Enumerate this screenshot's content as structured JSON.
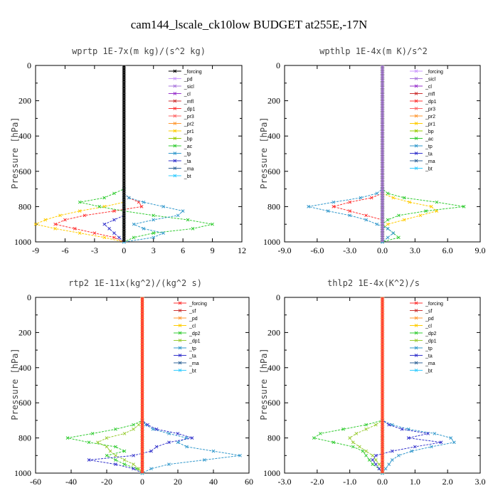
{
  "figure_title": "cam144_lscale_ck10low  BUDGET at255E,-17N",
  "chart_data": [
    {
      "type": "line",
      "title": "wprtp   1E-7x(m kg)/(s^2 kg)",
      "ylabel": "Pressure [hPa]",
      "xlim": [
        -9,
        12
      ],
      "xticks": [
        "-9",
        "-6",
        "-3",
        "0",
        "3",
        "6",
        "9",
        "12"
      ],
      "xtick_values": [
        -9,
        -6,
        -3,
        0,
        3,
        6,
        9,
        12
      ],
      "ylim": [
        1000,
        0
      ],
      "yticks": [
        "0",
        "200",
        "400",
        "600",
        "800",
        "1000"
      ],
      "legend_position": "top-right",
      "p": [
        700,
        725,
        750,
        775,
        800,
        825,
        850,
        875,
        900,
        925,
        950,
        975,
        1000
      ],
      "series": [
        {
          "name": "_forcing",
          "color": "#000000",
          "values": [
            0,
            0,
            0,
            0,
            0,
            0,
            0,
            0,
            0,
            0,
            0,
            0,
            0
          ]
        },
        {
          "name": "_pd",
          "color": "#cc99ff",
          "values": [
            0,
            0,
            0,
            0,
            0,
            0,
            0,
            0,
            0,
            0,
            0,
            0,
            0
          ]
        },
        {
          "name": "_sicl",
          "color": "#aa77dd",
          "values": [
            0,
            0,
            0,
            0,
            0,
            0,
            0,
            0,
            0,
            0,
            0,
            0,
            0
          ]
        },
        {
          "name": "_cl",
          "color": "#9933cc",
          "values": [
            0,
            0,
            0,
            0,
            0,
            0,
            0,
            0,
            0,
            0,
            0,
            0,
            0
          ]
        },
        {
          "name": "_mfl",
          "color": "#cc3333",
          "values": [
            0,
            0,
            0,
            0,
            0,
            0,
            0,
            0,
            0,
            0,
            0,
            0,
            0
          ]
        },
        {
          "name": "_dp1",
          "color": "#ff3333",
          "values": [
            0,
            0,
            0.5,
            1.5,
            1.8,
            -1,
            -4,
            -6,
            -7,
            -5,
            -3,
            -1,
            0
          ]
        },
        {
          "name": "_pr3",
          "color": "#ff6666",
          "values": [
            0,
            0,
            0,
            0,
            0,
            0,
            0,
            0,
            0,
            0,
            0,
            0,
            0
          ]
        },
        {
          "name": "_pr2",
          "color": "#ff9933",
          "values": [
            0,
            0,
            0,
            0,
            0,
            0,
            0,
            0,
            0,
            0,
            0,
            0,
            0
          ]
        },
        {
          "name": "_pr1",
          "color": "#ffcc00",
          "values": [
            0,
            0,
            0,
            0,
            -2,
            -4.5,
            -6.5,
            -8,
            -9,
            -7,
            -4.5,
            -2,
            0
          ]
        },
        {
          "name": "_bp",
          "color": "#99cc00",
          "values": [
            0,
            0,
            0,
            0,
            0,
            0,
            0,
            0,
            0,
            0,
            0,
            0,
            0
          ]
        },
        {
          "name": "_ac",
          "color": "#33cc33",
          "values": [
            0,
            -1,
            -2,
            -4.5,
            -2.5,
            0,
            3,
            6.5,
            9,
            7,
            3,
            1,
            0
          ]
        },
        {
          "name": "_tp",
          "color": "#3399cc",
          "values": [
            0,
            0,
            0.5,
            2,
            4,
            6,
            5.5,
            3,
            1,
            2,
            4,
            3,
            0
          ]
        },
        {
          "name": "_ta",
          "color": "#3333cc",
          "values": [
            0,
            0,
            0,
            0,
            0,
            0,
            0,
            -1,
            -2,
            -1.5,
            -1,
            -0.5,
            0
          ]
        },
        {
          "name": "_ma",
          "color": "#336699",
          "values": [
            0,
            0,
            0,
            0,
            0,
            0,
            0,
            0,
            0,
            0,
            0,
            0,
            0
          ]
        },
        {
          "name": "_bt",
          "color": "#33ccff",
          "values": [
            0,
            0,
            0,
            0,
            0,
            0,
            0,
            0,
            0,
            0,
            0,
            0,
            0
          ]
        }
      ]
    },
    {
      "type": "line",
      "title": "wpthlp   1E-4x(m K)/s^2",
      "ylabel": "Pressure [hPa]",
      "xlim": [
        -9,
        9
      ],
      "xticks": [
        "-9.0",
        "-6.0",
        "-3.0",
        "0.0",
        "3.0",
        "6.0",
        "9.0"
      ],
      "xtick_values": [
        -9,
        -6,
        -3,
        0,
        3,
        6,
        9
      ],
      "ylim": [
        1000,
        0
      ],
      "yticks": [
        "0",
        "200",
        "400",
        "600",
        "800",
        "1000"
      ],
      "legend_position": "top-right",
      "p": [
        700,
        725,
        750,
        775,
        800,
        825,
        850,
        875,
        900,
        925,
        950,
        975,
        1000
      ],
      "series": [
        {
          "name": "_forcing",
          "color": "#cc99ff",
          "values": [
            0,
            0,
            0,
            0,
            0,
            0,
            0,
            0,
            0,
            0,
            0,
            0,
            0
          ]
        },
        {
          "name": "_sicl",
          "color": "#aa77dd",
          "values": [
            0,
            0,
            0,
            0,
            0,
            0,
            0,
            0,
            0,
            0,
            0,
            0,
            0
          ]
        },
        {
          "name": "_cl",
          "color": "#9933cc",
          "values": [
            0,
            0,
            0,
            0,
            0,
            0,
            0,
            0,
            0,
            0,
            0,
            0,
            0
          ]
        },
        {
          "name": "_mfl",
          "color": "#cc3333",
          "values": [
            0,
            0,
            0,
            0,
            0,
            0,
            0,
            0,
            0,
            0,
            0,
            0,
            0
          ]
        },
        {
          "name": "_dp1",
          "color": "#ff3333",
          "values": [
            0,
            0,
            -1,
            -3,
            -4.5,
            -3,
            -1.5,
            0,
            0,
            0,
            0,
            0,
            0
          ]
        },
        {
          "name": "_pr3",
          "color": "#ff6666",
          "values": [
            0,
            0,
            0,
            0,
            0,
            0,
            0,
            0,
            0,
            0,
            0,
            0,
            0
          ]
        },
        {
          "name": "_pr2",
          "color": "#ff9933",
          "values": [
            0,
            0,
            0,
            0,
            0,
            0,
            0,
            0,
            0,
            0,
            0,
            0,
            0
          ]
        },
        {
          "name": "_pr1",
          "color": "#ffcc00",
          "values": [
            0,
            0,
            1,
            2.5,
            4.5,
            5,
            3.5,
            2,
            0.5,
            0,
            0,
            0,
            0
          ]
        },
        {
          "name": "_bp",
          "color": "#99cc00",
          "values": [
            0,
            0,
            0,
            0,
            0,
            0,
            0,
            0,
            0,
            0,
            0,
            0,
            0
          ]
        },
        {
          "name": "_ac",
          "color": "#33cc33",
          "values": [
            0,
            0.5,
            2,
            5,
            7.5,
            4,
            1.5,
            0.5,
            0,
            0.5,
            1,
            1.5,
            0
          ]
        },
        {
          "name": "_tp",
          "color": "#3399cc",
          "values": [
            0,
            -0.5,
            -2,
            -4.5,
            -6.8,
            -5,
            -3,
            -1.5,
            -0.5,
            0.5,
            1,
            0.5,
            0
          ]
        },
        {
          "name": "_ta",
          "color": "#3333cc",
          "values": [
            0,
            0,
            0,
            0,
            0,
            0,
            0,
            0,
            0,
            0,
            0,
            0,
            0
          ]
        },
        {
          "name": "_ma",
          "color": "#336699",
          "values": [
            0,
            0,
            0,
            0,
            0,
            0,
            0,
            0,
            0,
            0,
            0,
            0,
            0
          ]
        },
        {
          "name": "_bt",
          "color": "#33ccff",
          "values": [
            0,
            0,
            0,
            0,
            0,
            0,
            0,
            0,
            0,
            0,
            0,
            0,
            0
          ]
        }
      ]
    },
    {
      "type": "line",
      "title": "rtp2   1E-11x(kg^2)/(kg^2 s)",
      "ylabel": "Pressure [hPa]",
      "xlim": [
        -60,
        60
      ],
      "xticks": [
        "-60",
        "-40",
        "-20",
        "0",
        "20",
        "40",
        "60"
      ],
      "xtick_values": [
        -60,
        -40,
        -20,
        0,
        20,
        40,
        60
      ],
      "ylim": [
        1000,
        0
      ],
      "yticks": [
        "0",
        "200",
        "400",
        "600",
        "800",
        "1000"
      ],
      "legend_position": "top-right",
      "p": [
        700,
        725,
        750,
        775,
        800,
        825,
        850,
        875,
        900,
        925,
        950,
        975,
        1000
      ],
      "series": [
        {
          "name": "_forcing",
          "color": "#ff3333",
          "values": [
            0,
            0,
            0,
            0,
            0,
            0,
            0,
            0,
            0,
            0,
            0,
            0,
            0
          ]
        },
        {
          "name": "_sf",
          "color": "#cc3333",
          "values": [
            0,
            0,
            0,
            0,
            0,
            0,
            0,
            0,
            0,
            0,
            0,
            0,
            0
          ]
        },
        {
          "name": "_pd",
          "color": "#ff9933",
          "values": [
            0,
            0,
            0,
            0,
            0,
            0,
            0,
            0,
            0,
            0,
            0,
            0,
            0
          ]
        },
        {
          "name": "_cl",
          "color": "#ffcc00",
          "values": [
            0,
            0,
            0,
            0,
            0,
            0,
            0,
            0,
            0,
            0,
            0,
            0,
            0
          ]
        },
        {
          "name": "_dp2",
          "color": "#33cc33",
          "values": [
            0,
            -5,
            -15,
            -28,
            -42,
            -30,
            -15,
            -10,
            -20,
            -15,
            -10,
            -3,
            0
          ]
        },
        {
          "name": "_dp1",
          "color": "#99cc33",
          "values": [
            0,
            -2,
            -5,
            -10,
            -20,
            -25,
            -20,
            -18,
            -15,
            -10,
            -5,
            -2,
            0
          ]
        },
        {
          "name": "_tp",
          "color": "#3399cc",
          "values": [
            0,
            2,
            6,
            15,
            25,
            20,
            25,
            40,
            55,
            35,
            15,
            5,
            0
          ]
        },
        {
          "name": "_ta",
          "color": "#3333cc",
          "values": [
            0,
            3,
            8,
            20,
            28,
            15,
            8,
            5,
            -5,
            -30,
            -15,
            -5,
            0
          ]
        },
        {
          "name": "_ma",
          "color": "#336699",
          "values": [
            0,
            0,
            0,
            0,
            0,
            0,
            0,
            0,
            0,
            0,
            0,
            0,
            0
          ]
        },
        {
          "name": "_bt",
          "color": "#33ccff",
          "values": [
            0,
            0,
            0,
            0,
            0,
            0,
            0,
            0,
            0,
            0,
            0,
            0,
            0
          ]
        }
      ]
    },
    {
      "type": "line",
      "title": "thlp2   1E-4x(K^2)/s",
      "ylabel": "Pressure [hPa]",
      "xlim": [
        -3,
        3
      ],
      "xticks": [
        "-3.0",
        "-2.0",
        "-1.0",
        "0.0",
        "1.0",
        "2.0",
        "3.0"
      ],
      "xtick_values": [
        -3,
        -2,
        -1,
        0,
        1,
        2,
        3
      ],
      "ylim": [
        1000,
        0
      ],
      "yticks": [
        "0",
        "200",
        "400",
        "600",
        "800",
        "1000"
      ],
      "legend_position": "top-right",
      "p": [
        700,
        725,
        750,
        775,
        800,
        825,
        850,
        875,
        900,
        925,
        950,
        975,
        1000
      ],
      "series": [
        {
          "name": "_forcing",
          "color": "#ff3333",
          "values": [
            0,
            0,
            0,
            0,
            0,
            0,
            0,
            0,
            0,
            0,
            0,
            0,
            0
          ]
        },
        {
          "name": "_sf",
          "color": "#cc3333",
          "values": [
            0,
            0,
            0,
            0,
            0,
            0,
            0,
            0,
            0,
            0,
            0,
            0,
            0
          ]
        },
        {
          "name": "_pd",
          "color": "#ff9933",
          "values": [
            0,
            0,
            0,
            0,
            0,
            0,
            0,
            0,
            0,
            0,
            0,
            0,
            0
          ]
        },
        {
          "name": "_cl",
          "color": "#ffcc00",
          "values": [
            0,
            0,
            0,
            0,
            0,
            0,
            0,
            0,
            0,
            0,
            0,
            0,
            0
          ]
        },
        {
          "name": "_dp2",
          "color": "#33cc33",
          "values": [
            0,
            -0.5,
            -1.2,
            -1.9,
            -2.1,
            -1.5,
            -0.9,
            -0.6,
            -0.5,
            -0.4,
            -0.3,
            -0.1,
            0
          ]
        },
        {
          "name": "_dp1",
          "color": "#99cc33",
          "values": [
            0,
            -0.2,
            -0.5,
            -0.8,
            -1,
            -0.9,
            -0.7,
            -0.5,
            -0.3,
            -0.2,
            -0.1,
            0,
            0
          ]
        },
        {
          "name": "_tp",
          "color": "#3399cc",
          "values": [
            0,
            0.3,
            0.8,
            1.6,
            2.1,
            2.2,
            1.5,
            0.9,
            0.5,
            0.3,
            0.2,
            0.1,
            0
          ]
        },
        {
          "name": "_ta",
          "color": "#3333cc",
          "values": [
            0,
            0.2,
            0.6,
            1.4,
            0.8,
            1.8,
            1,
            0.3,
            -0.2,
            -0.3,
            -0.2,
            -0.1,
            0
          ]
        },
        {
          "name": "_ma",
          "color": "#336699",
          "values": [
            0,
            0,
            0,
            0,
            0,
            0,
            0,
            0,
            0,
            0,
            0,
            0,
            0
          ]
        },
        {
          "name": "_bt",
          "color": "#33ccff",
          "values": [
            0,
            0,
            0,
            0,
            0,
            0,
            0,
            0,
            0,
            0,
            0,
            0,
            0
          ]
        }
      ]
    }
  ]
}
